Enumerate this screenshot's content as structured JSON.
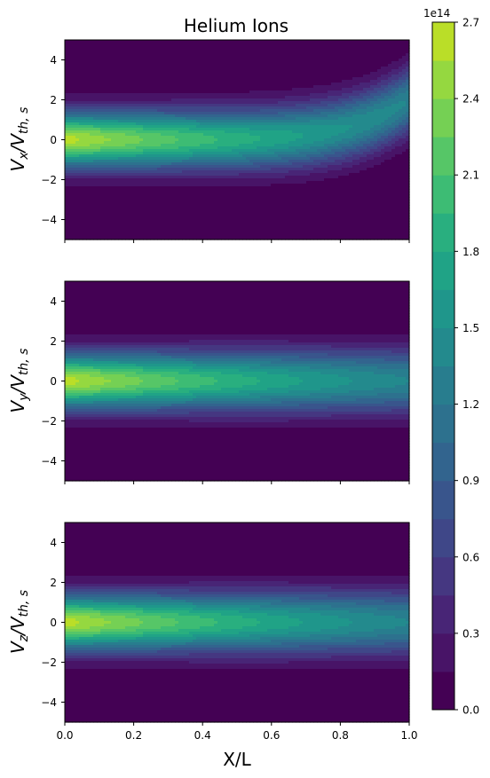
{
  "title": "Helium Ions",
  "xlabel": "X/L",
  "ylabels": [
    {
      "main": "V",
      "sub1": "x",
      "slash": "/V",
      "sub2": "th, s"
    },
    {
      "main": "V",
      "sub1": "y",
      "slash": "/V",
      "sub2": "th, s"
    },
    {
      "main": "V",
      "sub1": "z",
      "slash": "/V",
      "sub2": "th, s"
    }
  ],
  "colorbar": {
    "offset_text": "1e14",
    "ticks": [
      "0.0",
      "0.3",
      "0.6",
      "0.9",
      "1.2",
      "1.5",
      "1.8",
      "2.1",
      "2.4",
      "2.7"
    ],
    "min": 0.0,
    "max": 2.7,
    "levels": 18,
    "colors": [
      "#440154",
      "#481467",
      "#482576",
      "#453781",
      "#3f4788",
      "#39558c",
      "#32648e",
      "#2d718e",
      "#287d8e",
      "#238a8d",
      "#1f968b",
      "#20a386",
      "#29af7f",
      "#3dbc74",
      "#56c667",
      "#75d054",
      "#95d840",
      "#bade28",
      "#dde318"
    ]
  },
  "chart_data": [
    {
      "type": "heatmap",
      "title": "Helium Ions",
      "xlabel": "",
      "ylabel": "V_x/V_th,s",
      "xlim": [
        0.0,
        1.0
      ],
      "ylim": [
        -5,
        5
      ],
      "xticks": [],
      "yticks": [
        "−4",
        "−2",
        "0",
        "2",
        "4"
      ],
      "model": {
        "peak": 2.62,
        "decay": 0.33,
        "sigma0": 0.95,
        "sigma_growth": 0.2,
        "drift_end": 2.0
      }
    },
    {
      "type": "heatmap",
      "title": "",
      "xlabel": "",
      "ylabel": "V_y/V_th,s",
      "xlim": [
        0.0,
        1.0
      ],
      "ylim": [
        -5,
        5
      ],
      "xticks": [],
      "yticks": [
        "−4",
        "−2",
        "0",
        "2",
        "4"
      ],
      "model": {
        "peak": 2.62,
        "decay": 0.33,
        "sigma0": 0.95,
        "sigma_growth": 0.2,
        "drift_end": 0.0
      }
    },
    {
      "type": "heatmap",
      "title": "",
      "xlabel": "X/L",
      "ylabel": "V_z/V_th,s",
      "xlim": [
        0.0,
        1.0
      ],
      "ylim": [
        -5,
        5
      ],
      "xticks": [
        "0.0",
        "0.2",
        "0.4",
        "0.6",
        "0.8",
        "1.0"
      ],
      "yticks": [
        "−4",
        "−2",
        "0",
        "2",
        "4"
      ],
      "model": {
        "peak": 2.62,
        "decay": 0.33,
        "sigma0": 0.95,
        "sigma_growth": 0.2,
        "drift_end": 0.0
      }
    }
  ]
}
